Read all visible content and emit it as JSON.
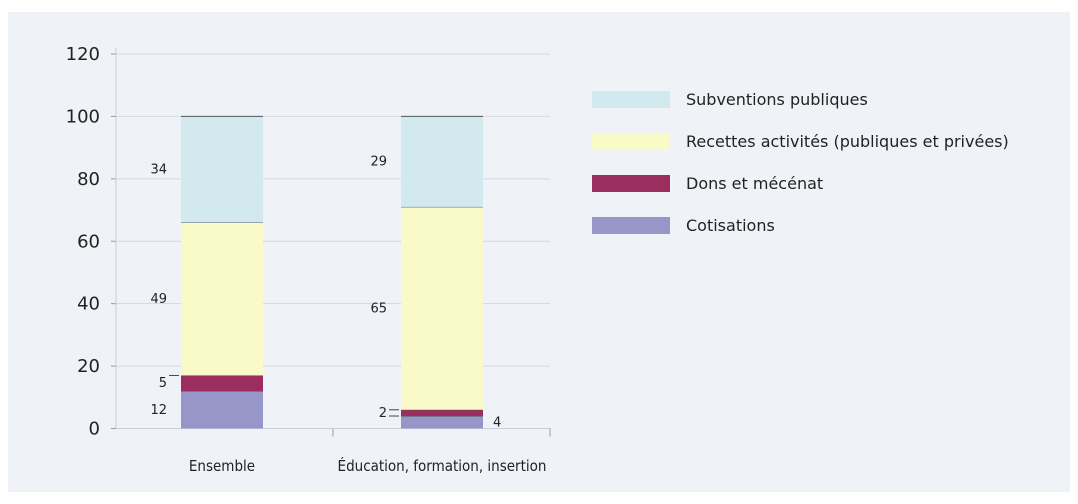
{
  "chart_data": {
    "type": "bar",
    "stacked": true,
    "categories": [
      "Ensemble",
      "Éducation, formation, insertion"
    ],
    "series": [
      {
        "name": "Cotisations",
        "color": "#9696c8",
        "values": [
          12,
          4
        ]
      },
      {
        "name": "Dons et mécénat",
        "color": "#9b2d5f",
        "values": [
          5,
          2
        ]
      },
      {
        "name": "Recettes activités (publiques et privées)",
        "color": "#fafac8",
        "values": [
          49,
          65
        ]
      },
      {
        "name": "Subventions publiques",
        "color": "#d2e9f0",
        "values": [
          34,
          29
        ]
      }
    ],
    "legend_order": [
      "Subventions publiques",
      "Recettes activités (publiques et privées)",
      "Dons et mécénat",
      "Cotisations"
    ],
    "ylim": [
      0,
      120
    ],
    "yticks": [
      0,
      20,
      40,
      60,
      80,
      100,
      120
    ],
    "grid": true,
    "legend_position": "right",
    "title": "",
    "xlabel": "",
    "ylabel": ""
  }
}
